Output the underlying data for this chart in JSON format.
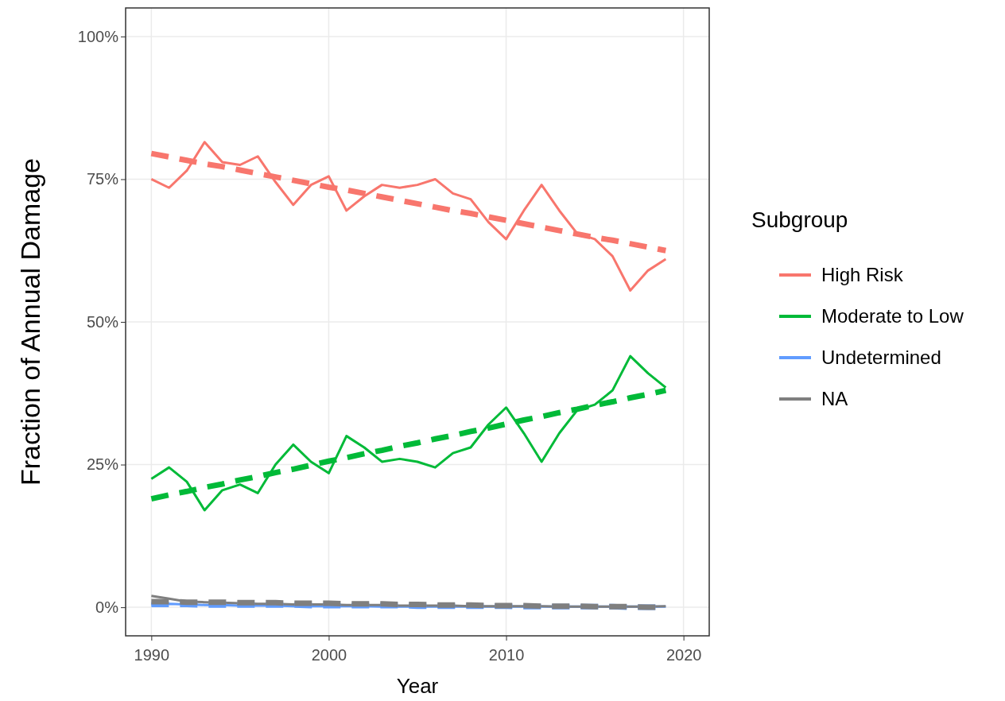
{
  "chart_data": {
    "type": "line",
    "xlabel": "Year",
    "ylabel": "Fraction of Annual Damage",
    "legend_title": "Subgroup",
    "legend": "right",
    "grid": true,
    "xlim": [
      1988.55,
      2021.45
    ],
    "ylim": [
      -5,
      105
    ],
    "xticks": [
      1990,
      2000,
      2010,
      2020
    ],
    "yticks": [
      {
        "value": 0,
        "label": "0%"
      },
      {
        "value": 25,
        "label": "25%"
      },
      {
        "value": 50,
        "label": "50%"
      },
      {
        "value": 75,
        "label": "75%"
      },
      {
        "value": 100,
        "label": "100%"
      }
    ],
    "x": [
      1990,
      1991,
      1992,
      1993,
      1994,
      1995,
      1996,
      1997,
      1998,
      1999,
      2000,
      2001,
      2002,
      2003,
      2004,
      2005,
      2006,
      2007,
      2008,
      2009,
      2010,
      2011,
      2012,
      2013,
      2014,
      2015,
      2016,
      2017,
      2018,
      2019
    ],
    "series": [
      {
        "name": "High Risk",
        "color": "#f8766d",
        "line_style": "solid",
        "values": [
          75,
          73.5,
          76.5,
          81.5,
          78,
          77.5,
          79,
          74.5,
          70.5,
          74,
          75.5,
          69.5,
          72,
          74,
          73.5,
          74,
          75,
          72.5,
          71.5,
          67.5,
          64.5,
          69.5,
          74,
          69.5,
          65.5,
          64.5,
          61.5,
          55.5,
          59,
          61
        ]
      },
      {
        "name": "Moderate to Low",
        "color": "#00ba38",
        "line_style": "solid",
        "values": [
          22.5,
          24.5,
          22,
          17,
          20.5,
          21.5,
          20,
          25,
          28.5,
          25.5,
          23.5,
          30,
          28,
          25.5,
          26,
          25.5,
          24.5,
          27,
          28,
          32,
          35,
          30.5,
          25.5,
          30.5,
          34.5,
          35.5,
          38,
          44,
          41,
          38.5
        ]
      },
      {
        "name": "Undetermined",
        "color": "#619cff",
        "line_style": "solid",
        "values": [
          0.5,
          0.6,
          0.5,
          0.4,
          0.4,
          0.3,
          0.3,
          0.3,
          0.2,
          0.2,
          0.2,
          0.2,
          0.2,
          0.1,
          0.1,
          0.1,
          0.1,
          0.1,
          0.1,
          0.1,
          0.1,
          0.1,
          0.1,
          0.1,
          0.1,
          0.1,
          0.1,
          0.1,
          0.1,
          0.1
        ]
      },
      {
        "name": "NA",
        "color": "#7f7f7f",
        "line_style": "solid",
        "values": [
          2,
          1.5,
          1,
          0.9,
          0.8,
          0.7,
          0.6,
          0.6,
          0.5,
          0.5,
          0.5,
          0.4,
          0.4,
          0.4,
          0.3,
          0.3,
          0.3,
          0.3,
          0.2,
          0.2,
          0.2,
          0.2,
          0.2,
          0.1,
          0.1,
          0.1,
          0.1,
          0.1,
          0.1,
          0.2
        ]
      },
      {
        "color": "#f8766d",
        "line_style": "dashed",
        "values": [
          79.5,
          78.9,
          78.3,
          77.7,
          77.2,
          76.6,
          76.0,
          75.4,
          74.8,
          74.2,
          73.6,
          73.1,
          72.5,
          71.9,
          71.3,
          70.7,
          70.1,
          69.5,
          69.0,
          68.4,
          67.8,
          67.2,
          66.6,
          66.0,
          65.4,
          64.8,
          64.3,
          63.7,
          63.1,
          62.5
        ]
      },
      {
        "color": "#00ba38",
        "line_style": "dashed",
        "values": [
          19,
          19.7,
          20.3,
          21.0,
          21.6,
          22.3,
          22.9,
          23.6,
          24.2,
          24.9,
          25.6,
          26.2,
          26.9,
          27.5,
          28.2,
          28.8,
          29.5,
          30.1,
          30.8,
          31.4,
          32.1,
          32.8,
          33.4,
          34.1,
          34.7,
          35.4,
          36.0,
          36.7,
          37.3,
          38
        ]
      },
      {
        "color": "#619cff",
        "line_style": "dashed",
        "values": [
          0.5,
          0.5,
          0.5,
          0.4,
          0.4,
          0.4,
          0.4,
          0.4,
          0.4,
          0.3,
          0.3,
          0.3,
          0.3,
          0.3,
          0.3,
          0.2,
          0.2,
          0.2,
          0.2,
          0.2,
          0.2,
          0.1,
          0.1,
          0.1,
          0.1,
          0.1,
          0.1,
          0,
          0,
          0
        ]
      },
      {
        "color": "#7f7f7f",
        "line_style": "dashed",
        "values": [
          1,
          1,
          0.9,
          0.9,
          0.9,
          0.8,
          0.8,
          0.8,
          0.7,
          0.7,
          0.7,
          0.6,
          0.6,
          0.6,
          0.5,
          0.5,
          0.4,
          0.4,
          0.4,
          0.3,
          0.3,
          0.3,
          0.2,
          0.2,
          0.2,
          0.1,
          0.1,
          0.1,
          0,
          0
        ]
      }
    ]
  }
}
